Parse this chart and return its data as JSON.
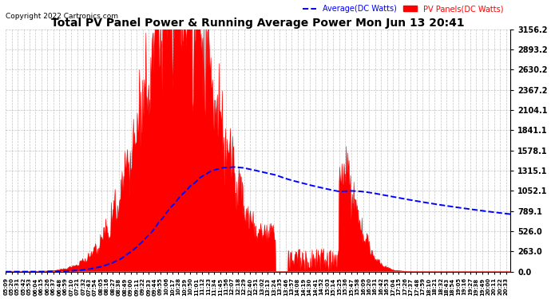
{
  "title": "Total PV Panel Power & Running Average Power Mon Jun 13 20:41",
  "copyright": "Copyright 2022 Cartronics.com",
  "legend_avg": "Average(DC Watts)",
  "legend_pv": "PV Panels(DC Watts)",
  "yticks": [
    0.0,
    263.0,
    526.0,
    789.1,
    1052.1,
    1315.1,
    1578.1,
    1841.1,
    2104.1,
    2367.2,
    2630.2,
    2893.2,
    3156.2
  ],
  "ymax": 3156.2,
  "bg_color": "#ffffff",
  "plot_bg_color": "#ffffff",
  "grid_color": "#aaaaaa",
  "pv_color": "#ff0000",
  "avg_color": "#0000ff",
  "title_color": "#000000",
  "copyright_color": "#000000"
}
